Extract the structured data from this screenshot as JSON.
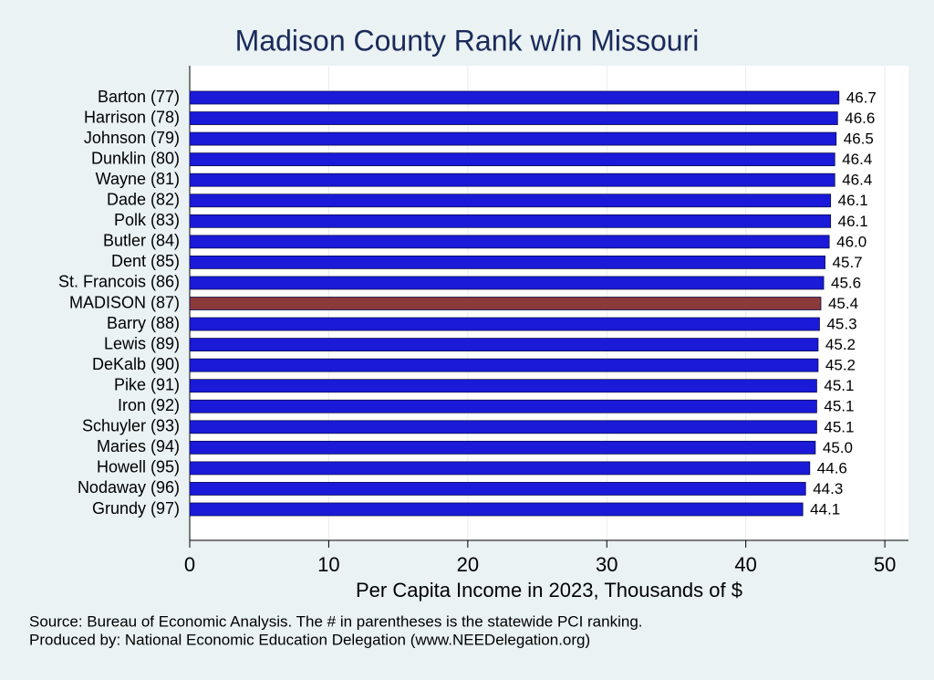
{
  "chart_data": {
    "type": "hbar",
    "title": "Madison County Rank w/in Missouri",
    "xlabel": "Per Capita Income in 2023, Thousands of $",
    "notes": [
      "Source: Bureau of Economic Analysis. The # in parentheses is the statewide PCI ranking.",
      "Produced by: National Economic Education Delegation (www.NEEDelegation.org)"
    ],
    "categories": [
      "Barton (77)",
      "Harrison (78)",
      "Johnson (79)",
      "Dunklin (80)",
      "Wayne (81)",
      "Dade (82)",
      "Polk (83)",
      "Butler (84)",
      "Dent (85)",
      "St. Francois (86)",
      "MADISON (87)",
      "Barry (88)",
      "Lewis (89)",
      "DeKalb (90)",
      "Pike (91)",
      "Iron (92)",
      "Schuyler (93)",
      "Maries (94)",
      "Howell (95)",
      "Nodaway (96)",
      "Grundy (97)"
    ],
    "values": [
      46.7,
      46.6,
      46.5,
      46.4,
      46.4,
      46.1,
      46.1,
      46.0,
      45.7,
      45.6,
      45.4,
      45.3,
      45.2,
      45.2,
      45.1,
      45.1,
      45.1,
      45.0,
      44.6,
      44.3,
      44.1
    ],
    "value_labels": [
      "46.7",
      "46.6",
      "46.5",
      "46.4",
      "46.4",
      "46.1",
      "46.1",
      "46.0",
      "45.7",
      "45.6",
      "45.4",
      "45.3",
      "45.2",
      "45.2",
      "45.1",
      "45.1",
      "45.1",
      "45.0",
      "44.6",
      "44.3",
      "44.1"
    ],
    "colors": [
      "#1a1ad8",
      "#1a1ad8",
      "#1a1ad8",
      "#1a1ad8",
      "#1a1ad8",
      "#1a1ad8",
      "#1a1ad8",
      "#1a1ad8",
      "#1a1ad8",
      "#1a1ad8",
      "#8b3a3a",
      "#1a1ad8",
      "#1a1ad8",
      "#1a1ad8",
      "#1a1ad8",
      "#1a1ad8",
      "#1a1ad8",
      "#1a1ad8",
      "#1a1ad8",
      "#1a1ad8",
      "#1a1ad8"
    ],
    "xlim": [
      0,
      51.7
    ],
    "xticks": [
      0,
      10,
      20,
      30,
      40,
      50
    ],
    "grid": true
  }
}
